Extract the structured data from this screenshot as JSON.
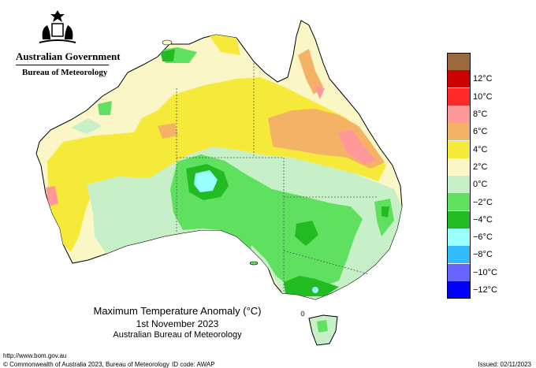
{
  "header": {
    "government": "Australian Government",
    "agency": "Bureau of Meteorology",
    "crest_icon": "commonwealth-coat-of-arms-icon"
  },
  "map": {
    "title": "Maximum Temperature Anomaly (°C)",
    "date": "1st November 2023",
    "source": "Australian Bureau of Meteorology"
  },
  "legend": {
    "unit": "°C",
    "entries": [
      {
        "label": "",
        "color": "#9a6a3c"
      },
      {
        "label": "12°C",
        "color": "#cc0000"
      },
      {
        "label": "10°C",
        "color": "#ff2b2b"
      },
      {
        "label": "8°C",
        "color": "#ff9999"
      },
      {
        "label": "6°C",
        "color": "#f4b266"
      },
      {
        "label": "4°C",
        "color": "#f5ea3a"
      },
      {
        "label": "2°C",
        "color": "#fbf6c6"
      },
      {
        "label": "0°C",
        "color": "#c8f0c8"
      },
      {
        "label": "−2°C",
        "color": "#5fe05f"
      },
      {
        "label": "−4°C",
        "color": "#22bb22"
      },
      {
        "label": "−6°C",
        "color": "#99ffff"
      },
      {
        "label": "−8°C",
        "color": "#33bbff"
      },
      {
        "label": "−10°C",
        "color": "#6666ff"
      },
      {
        "label": "−12°C",
        "color": "#0000ff"
      }
    ]
  },
  "footer": {
    "url": "http://www.bom.gov.au",
    "copyright": "© Commonwealth of Australia 2023, Bureau of Meteorology",
    "id_code": "ID code: AWAP",
    "issued": "Issued: 02/11/2023"
  }
}
